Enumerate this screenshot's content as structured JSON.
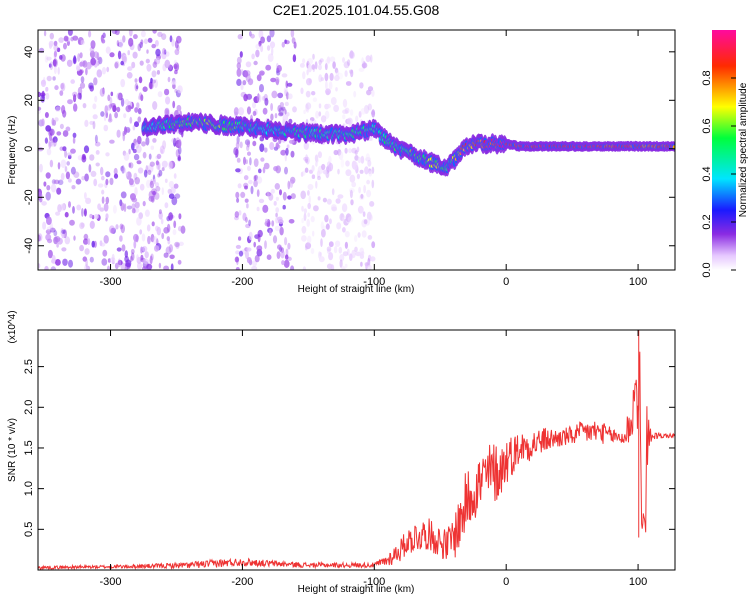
{
  "title": "C2E1.2025.101.04.55.G08",
  "chart_data": [
    {
      "type": "heatmap",
      "xlabel": "Height of straight line (km)",
      "ylabel": "Frequency (Hz)",
      "xlim": [
        -355,
        128
      ],
      "ylim": [
        -50,
        49
      ],
      "xticks": [
        -300,
        -200,
        -100,
        0,
        100
      ],
      "xtick_labels": [
        "-300",
        "-200",
        "-100",
        "0",
        "100"
      ],
      "yticks": [
        -40,
        -20,
        0,
        20,
        40
      ],
      "ytick_labels": [
        "-40",
        "-20",
        "0",
        "20",
        "40"
      ],
      "colorbar": {
        "label": "Normalized spectral amplitude",
        "range": [
          0,
          1
        ],
        "ticks": [
          0.0,
          0.2,
          0.4,
          0.6,
          0.8
        ],
        "tick_labels": [
          "0.0",
          "0.2",
          "0.4",
          "0.6",
          "0.8"
        ],
        "colormap": "rainbow (white-violet-blue-cyan-green-yellow-red-magenta)"
      },
      "main_trace": {
        "x": [
          -275,
          -260,
          -240,
          -220,
          -200,
          -180,
          -160,
          -140,
          -120,
          -100,
          -90,
          -80,
          -70,
          -60,
          -50,
          -45,
          -40,
          -30,
          -20,
          -10,
          0,
          10,
          30,
          50,
          70,
          90,
          100,
          128
        ],
        "y": [
          9,
          10,
          11,
          10,
          9,
          8,
          7,
          6,
          6,
          8,
          3,
          0,
          -3,
          -5,
          -7,
          -8,
          -5,
          1,
          2,
          2,
          2,
          1,
          1,
          1,
          1,
          1,
          1,
          1
        ],
        "amplitude": [
          0.4,
          0.5,
          0.6,
          0.6,
          0.5,
          0.4,
          0.5,
          0.45,
          0.5,
          0.45,
          0.5,
          0.5,
          0.55,
          0.6,
          0.6,
          0.5,
          0.6,
          0.8,
          0.85,
          0.9,
          0.95,
          0.9,
          0.9,
          0.9,
          0.9,
          0.85,
          0.85,
          0.85
        ]
      },
      "noise_regions": [
        {
          "x": [
            -355,
            -245
          ],
          "y": [
            -50,
            49
          ],
          "amplitude": 0.1
        },
        {
          "x": [
            -205,
            -160
          ],
          "y": [
            -50,
            49
          ],
          "amplitude": 0.1
        },
        {
          "x": [
            -155,
            -100
          ],
          "y": [
            -50,
            40
          ],
          "amplitude": 0.05
        }
      ]
    },
    {
      "type": "line",
      "xlabel": "Height of straight line (km)",
      "ylabel": "SNR (10 * v/v)",
      "y_multiplier": "(x10^4)",
      "xlim": [
        -355,
        128
      ],
      "ylim": [
        0,
        2.95
      ],
      "xticks": [
        -300,
        -200,
        -100,
        0,
        100
      ],
      "xtick_labels": [
        "-300",
        "-200",
        "-100",
        "0",
        "100"
      ],
      "yticks": [
        0.5,
        1.0,
        1.5,
        2.0,
        2.5
      ],
      "ytick_labels": [
        "0.5",
        "1.0",
        "1.5",
        "2.0",
        "2.5"
      ],
      "color": "#ee3333",
      "series": [
        {
          "x": [
            -355,
            -300,
            -260,
            -240,
            -220,
            -200,
            -180,
            -150,
            -120,
            -100,
            -90,
            -80,
            -75,
            -70,
            -60,
            -50,
            -45,
            -40,
            -35,
            -30,
            -25,
            -20,
            -15,
            -10,
            -5,
            0,
            10,
            20,
            30,
            40,
            50,
            60,
            70,
            80,
            90,
            95,
            100,
            103,
            105,
            110,
            120,
            128
          ],
          "y": [
            0.03,
            0.04,
            0.05,
            0.06,
            0.08,
            0.1,
            0.08,
            0.06,
            0.06,
            0.06,
            0.12,
            0.25,
            0.35,
            0.4,
            0.45,
            0.35,
            0.3,
            0.4,
            0.6,
            0.85,
            1.0,
            1.05,
            1.15,
            1.2,
            1.2,
            1.35,
            1.5,
            1.55,
            1.6,
            1.62,
            1.65,
            1.7,
            1.7,
            1.65,
            1.62,
            1.9,
            2.3,
            1.5,
            1.2,
            1.65,
            1.65,
            1.65
          ],
          "noise_amplitude": [
            0.02,
            0.02,
            0.03,
            0.04,
            0.05,
            0.05,
            0.04,
            0.03,
            0.03,
            0.03,
            0.08,
            0.15,
            0.15,
            0.2,
            0.2,
            0.2,
            0.2,
            0.3,
            0.35,
            0.4,
            0.4,
            0.4,
            0.4,
            0.4,
            0.35,
            0.3,
            0.2,
            0.2,
            0.15,
            0.12,
            0.12,
            0.15,
            0.15,
            0.1,
            0.1,
            0.4,
            0.6,
            1.0,
            1.1,
            0.05,
            0.03,
            0.03
          ]
        }
      ]
    }
  ]
}
